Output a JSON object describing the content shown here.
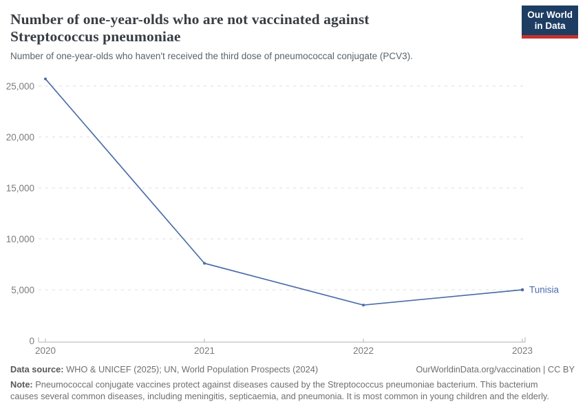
{
  "header": {
    "title": "Number of one-year-olds who are not vaccinated against Streptococcus pneumoniae",
    "subtitle": "Number of one-year-olds who haven't received the third dose of pneumococcal conjugate (PCV3).",
    "logo": {
      "line1": "Our World",
      "line2": "in Data",
      "bg_color": "#1d3d63",
      "accent_color": "#c7302d"
    }
  },
  "chart_data": {
    "type": "line",
    "title": "Number of one-year-olds who are not vaccinated against Streptococcus pneumoniae",
    "x": [
      2020,
      2021,
      2022,
      2023
    ],
    "xtick_labels": [
      "2020",
      "2021",
      "2022",
      "2023"
    ],
    "series": [
      {
        "name": "Tunisia",
        "values": [
          25700,
          7600,
          3500,
          5000
        ],
        "color": "#4c6da9"
      }
    ],
    "ylim": [
      0,
      25000
    ],
    "yticks": [
      0,
      5000,
      10000,
      15000,
      20000,
      25000
    ],
    "ytick_labels": [
      "0",
      "5,000",
      "10,000",
      "15,000",
      "20,000",
      "25,000"
    ],
    "xlabel": "",
    "ylabel": "",
    "grid": "horizontal-dashed",
    "grid_color": "#dcdee0",
    "axis_color": "#b0b2b4",
    "legend_position": "end-of-line"
  },
  "footer": {
    "datasource_label": "Data source:",
    "datasource_text": "WHO & UNICEF (2025); UN, World Population Prospects (2024)",
    "attribution": "OurWorldinData.org/vaccination | CC BY",
    "note_label": "Note:",
    "note_text": "Pneumococcal conjugate vaccines protect against diseases caused by the Streptococcus pneumoniae bacterium. This bacterium causes several common diseases, including meningitis, septicaemia, and pneumonia. It is most common in young children and the elderly."
  }
}
